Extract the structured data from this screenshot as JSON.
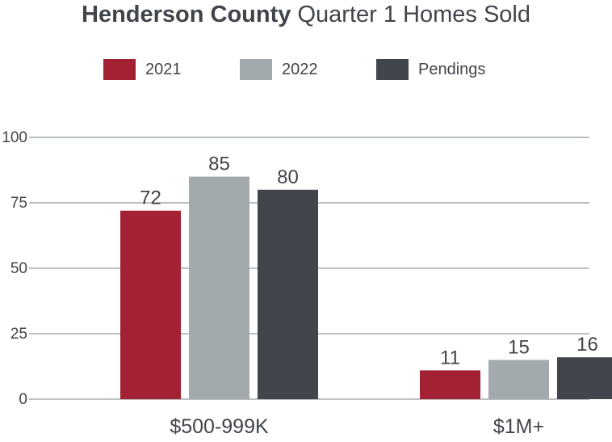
{
  "title": {
    "strong": "Henderson County",
    "rest": "Quarter 1 Homes Sold"
  },
  "colors": {
    "2021": "#a22233",
    "2022": "#a3aaae",
    "Pendings": "#40464c",
    "grid": "#7a7f84",
    "text": "#3f454b"
  },
  "chart_data": {
    "type": "bar",
    "title": "Henderson County Quarter 1 Homes Sold",
    "categories": [
      "$500-999K",
      "$1M+"
    ],
    "series": [
      {
        "name": "2021",
        "values": [
          72,
          11
        ]
      },
      {
        "name": "2022",
        "values": [
          85,
          15
        ]
      },
      {
        "name": "Pendings",
        "values": [
          80,
          16
        ]
      }
    ],
    "y_ticks": [
      "0",
      "25",
      "50",
      "75",
      "100"
    ],
    "ylim": [
      0,
      100
    ],
    "grid": true,
    "legend_position": "top-center",
    "xlabel": "",
    "ylabel": ""
  }
}
